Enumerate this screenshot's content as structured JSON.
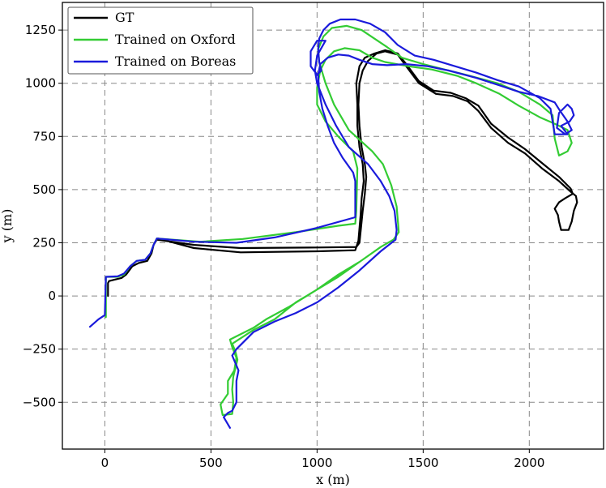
{
  "chart_data": {
    "type": "line",
    "title": "",
    "xlabel": "x (m)",
    "ylabel": "y (m)",
    "xlim": [
      -200,
      2350
    ],
    "ylim": [
      -720,
      1380
    ],
    "xticks": [
      0,
      500,
      1000,
      1500,
      2000
    ],
    "yticks": [
      -500,
      -250,
      0,
      250,
      500,
      750,
      1000,
      1250
    ],
    "xtick_labels": [
      "0",
      "500",
      "1000",
      "1500",
      "2000"
    ],
    "ytick_labels": [
      "−500",
      "−250",
      "0",
      "250",
      "500",
      "750",
      "1000",
      "1250"
    ],
    "grid": true,
    "legend_position": "top-left",
    "series": [
      {
        "name": "GT",
        "color": "#000000",
        "points": [
          [
            15,
            0
          ],
          [
            15,
            60
          ],
          [
            20,
            70
          ],
          [
            80,
            85
          ],
          [
            100,
            100
          ],
          [
            130,
            140
          ],
          [
            160,
            155
          ],
          [
            200,
            165
          ],
          [
            220,
            200
          ],
          [
            230,
            240
          ],
          [
            245,
            265
          ],
          [
            420,
            240
          ],
          [
            640,
            225
          ],
          [
            1000,
            228
          ],
          [
            1185,
            230
          ],
          [
            1200,
            250
          ],
          [
            1215,
            400
          ],
          [
            1225,
            480
          ],
          [
            1232,
            560
          ],
          [
            1225,
            620
          ],
          [
            1210,
            700
          ],
          [
            1200,
            800
          ],
          [
            1195,
            900
          ],
          [
            1200,
            1000
          ],
          [
            1215,
            1060
          ],
          [
            1240,
            1105
          ],
          [
            1280,
            1140
          ],
          [
            1320,
            1150
          ],
          [
            1380,
            1135
          ],
          [
            1420,
            1080
          ],
          [
            1480,
            1000
          ],
          [
            1560,
            950
          ],
          [
            1640,
            940
          ],
          [
            1710,
            915
          ],
          [
            1760,
            870
          ],
          [
            1820,
            790
          ],
          [
            1900,
            720
          ],
          [
            1980,
            670
          ],
          [
            2060,
            600
          ],
          [
            2140,
            540
          ],
          [
            2195,
            490
          ],
          [
            2220,
            470
          ],
          [
            2225,
            440
          ],
          [
            2210,
            400
          ],
          [
            2200,
            350
          ],
          [
            2185,
            310
          ],
          [
            2150,
            310
          ],
          [
            2140,
            350
          ],
          [
            2135,
            380
          ],
          [
            2120,
            410
          ],
          [
            2140,
            440
          ],
          [
            2170,
            460
          ],
          [
            2205,
            480
          ],
          [
            2195,
            505
          ],
          [
            2140,
            560
          ],
          [
            2060,
            625
          ],
          [
            1980,
            690
          ],
          [
            1900,
            745
          ],
          [
            1820,
            810
          ],
          [
            1760,
            895
          ],
          [
            1700,
            930
          ],
          [
            1630,
            955
          ],
          [
            1550,
            965
          ],
          [
            1480,
            1010
          ],
          [
            1420,
            1090
          ],
          [
            1380,
            1140
          ],
          [
            1320,
            1155
          ],
          [
            1270,
            1140
          ],
          [
            1225,
            1120
          ],
          [
            1200,
            1080
          ],
          [
            1185,
            1000
          ],
          [
            1190,
            900
          ],
          [
            1190,
            800
          ],
          [
            1200,
            700
          ],
          [
            1215,
            620
          ],
          [
            1220,
            540
          ],
          [
            1210,
            460
          ],
          [
            1205,
            380
          ],
          [
            1195,
            260
          ],
          [
            1180,
            215
          ],
          [
            1000,
            210
          ],
          [
            640,
            205
          ],
          [
            420,
            225
          ],
          [
            250,
            270
          ]
        ]
      },
      {
        "name": "Trained on Oxford",
        "color": "#33cc33",
        "points": [
          [
            5,
            -100
          ],
          [
            5,
            90
          ],
          [
            60,
            90
          ],
          [
            90,
            100
          ],
          [
            120,
            140
          ],
          [
            150,
            165
          ],
          [
            190,
            170
          ],
          [
            215,
            200
          ],
          [
            230,
            240
          ],
          [
            245,
            270
          ],
          [
            450,
            255
          ],
          [
            650,
            268
          ],
          [
            900,
            300
          ],
          [
            1100,
            330
          ],
          [
            1180,
            340
          ],
          [
            1185,
            400
          ],
          [
            1190,
            600
          ],
          [
            1170,
            680
          ],
          [
            1100,
            750
          ],
          [
            1040,
            820
          ],
          [
            1000,
            900
          ],
          [
            1000,
            980
          ],
          [
            1015,
            1060
          ],
          [
            1040,
            1110
          ],
          [
            1080,
            1150
          ],
          [
            1130,
            1165
          ],
          [
            1200,
            1155
          ],
          [
            1260,
            1120
          ],
          [
            1320,
            1100
          ],
          [
            1430,
            1080
          ],
          [
            1540,
            1065
          ],
          [
            1660,
            1035
          ],
          [
            1750,
            1000
          ],
          [
            1860,
            950
          ],
          [
            1950,
            895
          ],
          [
            2050,
            840
          ],
          [
            2120,
            810
          ],
          [
            2180,
            780
          ],
          [
            2200,
            720
          ],
          [
            2180,
            680
          ],
          [
            2140,
            660
          ],
          [
            2120,
            740
          ],
          [
            2110,
            850
          ],
          [
            2050,
            900
          ],
          [
            1950,
            960
          ],
          [
            1850,
            1000
          ],
          [
            1700,
            1040
          ],
          [
            1600,
            1065
          ],
          [
            1500,
            1090
          ],
          [
            1400,
            1120
          ],
          [
            1330,
            1170
          ],
          [
            1270,
            1210
          ],
          [
            1210,
            1250
          ],
          [
            1140,
            1270
          ],
          [
            1070,
            1260
          ],
          [
            1030,
            1220
          ],
          [
            1005,
            1160
          ],
          [
            1010,
            1100
          ],
          [
            1040,
            1000
          ],
          [
            1080,
            900
          ],
          [
            1150,
            780
          ],
          [
            1260,
            680
          ],
          [
            1310,
            620
          ],
          [
            1350,
            520
          ],
          [
            1375,
            420
          ],
          [
            1385,
            300
          ],
          [
            1360,
            265
          ],
          [
            1300,
            230
          ],
          [
            1200,
            160
          ],
          [
            1100,
            90
          ],
          [
            1000,
            30
          ],
          [
            870,
            -50
          ],
          [
            760,
            -110
          ],
          [
            700,
            -150
          ],
          [
            620,
            -190
          ],
          [
            590,
            -205
          ],
          [
            600,
            -240
          ],
          [
            620,
            -290
          ],
          [
            610,
            -350
          ],
          [
            580,
            -400
          ],
          [
            580,
            -460
          ],
          [
            545,
            -510
          ],
          [
            555,
            -560
          ],
          [
            600,
            -555
          ],
          [
            605,
            -500
          ],
          [
            600,
            -440
          ],
          [
            605,
            -380
          ],
          [
            625,
            -300
          ],
          [
            615,
            -260
          ],
          [
            600,
            -225
          ],
          [
            700,
            -160
          ],
          [
            800,
            -110
          ],
          [
            900,
            -30
          ],
          [
            1000,
            30
          ],
          [
            1100,
            100
          ],
          [
            1200,
            160
          ],
          [
            1300,
            230
          ],
          [
            1360,
            265
          ]
        ]
      },
      {
        "name": "Trained on Boreas",
        "color": "#1a1adb",
        "points": [
          [
            -70,
            -145
          ],
          [
            -30,
            -110
          ],
          [
            0,
            -90
          ],
          [
            5,
            90
          ],
          [
            60,
            92
          ],
          [
            90,
            105
          ],
          [
            120,
            140
          ],
          [
            150,
            165
          ],
          [
            190,
            170
          ],
          [
            215,
            200
          ],
          [
            230,
            240
          ],
          [
            245,
            270
          ],
          [
            420,
            255
          ],
          [
            620,
            250
          ],
          [
            800,
            275
          ],
          [
            1000,
            320
          ],
          [
            1180,
            370
          ],
          [
            1180,
            470
          ],
          [
            1180,
            540
          ],
          [
            1170,
            580
          ],
          [
            1120,
            650
          ],
          [
            1080,
            720
          ],
          [
            1050,
            800
          ],
          [
            1025,
            880
          ],
          [
            1010,
            960
          ],
          [
            1005,
            1040
          ],
          [
            1015,
            1090
          ],
          [
            1050,
            1120
          ],
          [
            1100,
            1135
          ],
          [
            1150,
            1130
          ],
          [
            1200,
            1110
          ],
          [
            1260,
            1090
          ],
          [
            1330,
            1085
          ],
          [
            1420,
            1090
          ],
          [
            1520,
            1080
          ],
          [
            1620,
            1060
          ],
          [
            1750,
            1025
          ],
          [
            1860,
            990
          ],
          [
            1950,
            960
          ],
          [
            2040,
            940
          ],
          [
            2120,
            910
          ],
          [
            2145,
            870
          ],
          [
            2180,
            820
          ],
          [
            2200,
            780
          ],
          [
            2170,
            760
          ],
          [
            2130,
            790
          ],
          [
            2140,
            860
          ],
          [
            2180,
            900
          ],
          [
            2200,
            880
          ],
          [
            2210,
            850
          ],
          [
            2190,
            820
          ],
          [
            2150,
            800
          ],
          [
            2180,
            760
          ],
          [
            2120,
            760
          ],
          [
            2110,
            820
          ],
          [
            2100,
            880
          ],
          [
            2050,
            930
          ],
          [
            1950,
            985
          ],
          [
            1850,
            1015
          ],
          [
            1750,
            1050
          ],
          [
            1650,
            1080
          ],
          [
            1550,
            1110
          ],
          [
            1460,
            1130
          ],
          [
            1380,
            1180
          ],
          [
            1320,
            1240
          ],
          [
            1250,
            1280
          ],
          [
            1180,
            1300
          ],
          [
            1110,
            1300
          ],
          [
            1060,
            1280
          ],
          [
            1030,
            1250
          ],
          [
            1010,
            1210
          ],
          [
            1005,
            1160
          ],
          [
            1010,
            1100
          ],
          [
            1020,
            1060
          ],
          [
            1000,
            1040
          ],
          [
            970,
            1080
          ],
          [
            970,
            1150
          ],
          [
            1000,
            1200
          ],
          [
            1040,
            1200
          ],
          [
            1000,
            1130
          ],
          [
            990,
            1060
          ],
          [
            1000,
            1000
          ],
          [
            1040,
            900
          ],
          [
            1090,
            800
          ],
          [
            1150,
            700
          ],
          [
            1240,
            620
          ],
          [
            1300,
            540
          ],
          [
            1340,
            470
          ],
          [
            1365,
            400
          ],
          [
            1375,
            310
          ],
          [
            1370,
            265
          ],
          [
            1300,
            210
          ],
          [
            1200,
            120
          ],
          [
            1100,
            40
          ],
          [
            1000,
            -30
          ],
          [
            900,
            -80
          ],
          [
            800,
            -120
          ],
          [
            700,
            -170
          ],
          [
            650,
            -220
          ],
          [
            620,
            -250
          ],
          [
            600,
            -280
          ],
          [
            630,
            -350
          ],
          [
            620,
            -400
          ],
          [
            620,
            -460
          ],
          [
            620,
            -500
          ],
          [
            600,
            -540
          ],
          [
            580,
            -550
          ],
          [
            560,
            -570
          ],
          [
            590,
            -620
          ]
        ]
      }
    ]
  }
}
